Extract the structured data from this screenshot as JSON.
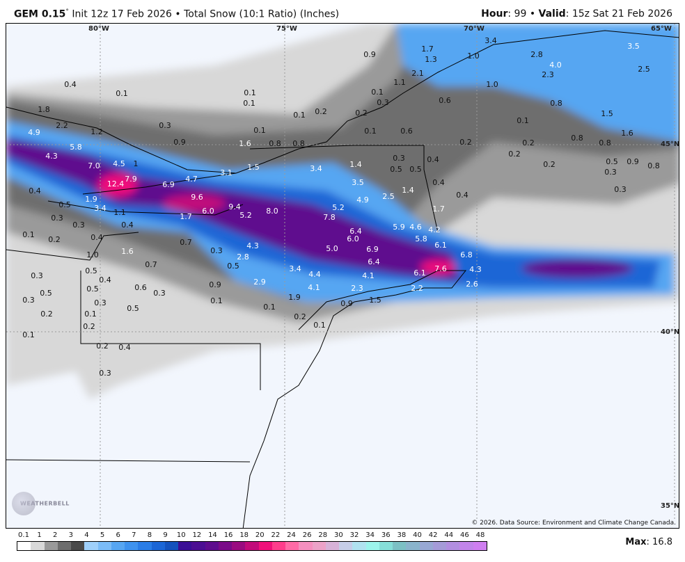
{
  "header": {
    "model": "GEM 0.15",
    "degree": "°",
    "init": "Init 12z 17 Feb 2026",
    "sep": "•",
    "product": "Total Snow (10:1 Ratio) (Inches)",
    "hour_label": "Hour",
    "hour": "99",
    "valid_label": "Valid",
    "valid": "15z Sat 21 Feb 2026"
  },
  "map": {
    "grid_labels": [
      "80°W",
      "75°W",
      "70°W",
      "65°W",
      "45°N",
      "40°N",
      "35°N"
    ],
    "copyright": "© 2026. Data Source: Environment and Climate Change Canada.",
    "logo": "WeatherBELL",
    "snow_labels": [
      "0.9",
      "1.7",
      "1.3",
      "1.0",
      "3.4",
      "2.8",
      "4.0",
      "3.5",
      "2.5",
      "2.3",
      "2.1",
      "1.1",
      "1.0",
      "0.4",
      "0.1",
      "0.1",
      "0.1",
      "0.1",
      "0.3",
      "0.6",
      "0.8",
      "1.5",
      "1.6",
      "1.8",
      "2.2",
      "1.2",
      "4.9",
      "0.3",
      "0.1",
      "0.2",
      "0.2",
      "0.1",
      "0.1",
      "0.6",
      "0.1",
      "0.9",
      "1.6",
      "0.8",
      "0.8",
      "0.2",
      "0.8",
      "0.8",
      "0.2",
      "0.2",
      "5.8",
      "4.3",
      "7.0",
      "4.5",
      "1",
      "3.4",
      "1.4",
      "0.3",
      "0.5",
      "0.5",
      "0.4",
      "0.5",
      "0.9",
      "0.8",
      "0.3",
      "3.1",
      "1.5",
      "12.4",
      "7.9",
      "6.9",
      "4.7",
      "3.5",
      "0.4",
      "0.2",
      "0.3",
      "0.4",
      "1.4",
      "2.5",
      "4.9",
      "9.6",
      "1.9",
      "0.5",
      "3.4",
      "1.1",
      "6.0",
      "9.4",
      "8.0",
      "5.2",
      "1.7",
      "0.4",
      "0.3",
      "0.3",
      "0.4",
      "1.7",
      "5.2",
      "7.8",
      "6.4",
      "5.9",
      "4.6",
      "4.2",
      "0.1",
      "0.2",
      "0.4",
      "0.7",
      "4.3",
      "2.8",
      "5.0",
      "6.0",
      "5.8",
      "6.1",
      "6.9",
      "6.4",
      "6.8",
      "0.3",
      "1.6",
      "1.0",
      "0.7",
      "3.4",
      "0.5",
      "0.5",
      "0.4",
      "0.3",
      "0.6",
      "0.3",
      "0.5",
      "0.5",
      "0.3",
      "0.3",
      "4.4",
      "4.1",
      "6.1",
      "7.6",
      "4.3",
      "2.9",
      "0.9",
      "2.2",
      "2.6",
      "0.1",
      "0.5",
      "0.1",
      "0.2",
      "4.1",
      "1.9",
      "2.3",
      "0.9",
      "1.5",
      "0.1",
      "0.2",
      "0.1",
      "0.2",
      "0.1",
      "0.2",
      "0.4",
      "0.3"
    ]
  },
  "legend": {
    "ticks": [
      "0.1",
      "1",
      "2",
      "3",
      "4",
      "5",
      "6",
      "7",
      "8",
      "9",
      "10",
      "12",
      "14",
      "16",
      "18",
      "20",
      "22",
      "24",
      "26",
      "28",
      "30",
      "32",
      "34",
      "36",
      "38",
      "40",
      "42",
      "44",
      "46",
      "48"
    ],
    "colors": [
      "#ffffff",
      "#d9d9d9",
      "#9a9a9a",
      "#6e6e6e",
      "#4a4a4a",
      "#9fd0fa",
      "#7bbcf7",
      "#57a6f2",
      "#3e92ee",
      "#2a7de6",
      "#1b66d6",
      "#1452bd",
      "#3b0f96",
      "#4c0e93",
      "#5e0c8e",
      "#7a0a88",
      "#9a0a80",
      "#c20a7a",
      "#f0107a",
      "#ff3d8c",
      "#ff6aa6",
      "#f58fbf",
      "#eca2c8",
      "#d7b2d8",
      "#c6cde8",
      "#b0e2f0",
      "#9cf4ec",
      "#86ded8",
      "#7cc0c4",
      "#8ab4cc",
      "#98a8d4",
      "#a59bd8",
      "#b28ee0",
      "#c284ea",
      "#cf7ef0"
    ],
    "max_label": "Max",
    "max_value": "16.8"
  }
}
